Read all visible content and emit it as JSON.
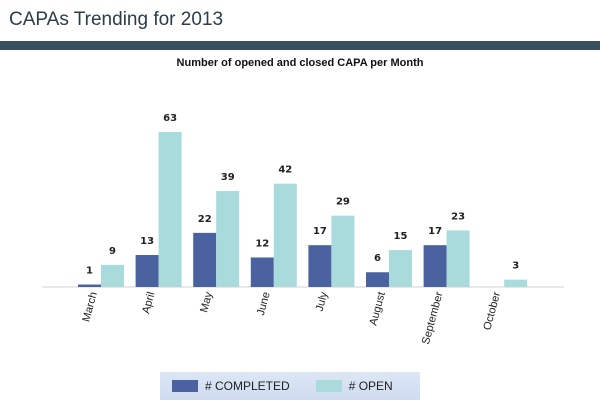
{
  "page": {
    "title": "CAPAs Trending for 2013"
  },
  "chart_data": {
    "type": "bar",
    "title": "Number of opened and closed CAPA per Month",
    "xlabel": "",
    "ylabel": "",
    "categories": [
      "March",
      "April",
      "May",
      "June",
      "July",
      "August",
      "September",
      "October"
    ],
    "series": [
      {
        "name": "# COMPLETED",
        "color": "#4a63a0",
        "values": [
          1,
          13,
          22,
          12,
          17,
          6,
          17,
          null
        ]
      },
      {
        "name": "# OPEN",
        "color": "#a9dbdc",
        "values": [
          9,
          63,
          39,
          42,
          29,
          15,
          23,
          3
        ]
      }
    ],
    "ylim": [
      0,
      63
    ],
    "grid": false,
    "legend": "bottom"
  }
}
